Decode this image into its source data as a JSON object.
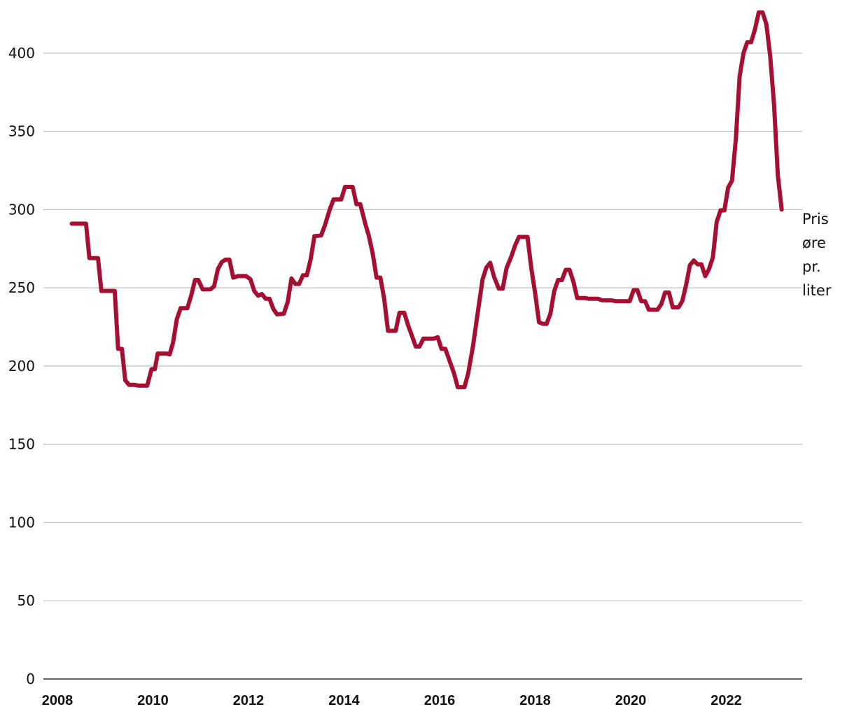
{
  "chart_data": {
    "type": "line",
    "title": "",
    "xlabel": "",
    "ylabel": "",
    "xlim": [
      2008,
      2023.8
    ],
    "ylim": [
      0,
      425
    ],
    "y_ticks": [
      "0",
      "50",
      "100",
      "150",
      "200",
      "250",
      "300",
      "350",
      "400"
    ],
    "x_ticks": [
      "2008",
      "2010",
      "2012",
      "2014",
      "2016",
      "2018",
      "2020",
      "2022"
    ],
    "grid": true,
    "end_label": [
      "Pris",
      "øre",
      "pr.",
      "liter"
    ],
    "series": [
      {
        "color": "#a50f32",
        "points": [
          [
            2008.3,
            291
          ],
          [
            2008.6,
            291
          ],
          [
            2008.67,
            269
          ],
          [
            2008.85,
            269
          ],
          [
            2008.92,
            248
          ],
          [
            2009.2,
            248
          ],
          [
            2009.27,
            211
          ],
          [
            2009.35,
            211
          ],
          [
            2009.42,
            191
          ],
          [
            2009.5,
            188
          ],
          [
            2009.62,
            188
          ],
          [
            2009.7,
            187.5
          ],
          [
            2009.88,
            187.5
          ],
          [
            2009.97,
            198
          ],
          [
            2010.04,
            198
          ],
          [
            2010.1,
            208
          ],
          [
            2010.28,
            208
          ],
          [
            2010.35,
            207.5
          ],
          [
            2010.42,
            215
          ],
          [
            2010.5,
            230
          ],
          [
            2010.58,
            237
          ],
          [
            2010.72,
            237
          ],
          [
            2010.8,
            245
          ],
          [
            2010.88,
            255
          ],
          [
            2010.95,
            255
          ],
          [
            2011.04,
            249
          ],
          [
            2011.2,
            249
          ],
          [
            2011.28,
            251
          ],
          [
            2011.36,
            262
          ],
          [
            2011.44,
            266.5
          ],
          [
            2011.52,
            268
          ],
          [
            2011.6,
            268
          ],
          [
            2011.68,
            256.5
          ],
          [
            2011.78,
            257.5
          ],
          [
            2011.95,
            257.5
          ],
          [
            2012.04,
            255.5
          ],
          [
            2012.12,
            248
          ],
          [
            2012.2,
            245
          ],
          [
            2012.28,
            246
          ],
          [
            2012.36,
            243
          ],
          [
            2012.44,
            243
          ],
          [
            2012.52,
            236.5
          ],
          [
            2012.6,
            233
          ],
          [
            2012.74,
            233.5
          ],
          [
            2012.82,
            241
          ],
          [
            2012.9,
            256
          ],
          [
            2012.98,
            252.5
          ],
          [
            2013.06,
            252.5
          ],
          [
            2013.14,
            258
          ],
          [
            2013.22,
            258
          ],
          [
            2013.3,
            268
          ],
          [
            2013.38,
            283
          ],
          [
            2013.52,
            283.5
          ],
          [
            2013.6,
            290
          ],
          [
            2013.7,
            300
          ],
          [
            2013.78,
            306.5
          ],
          [
            2013.94,
            306.5
          ],
          [
            2014.02,
            314.5
          ],
          [
            2014.18,
            314.5
          ],
          [
            2014.26,
            303.5
          ],
          [
            2014.34,
            303.5
          ],
          [
            2014.44,
            291.5
          ],
          [
            2014.52,
            283
          ],
          [
            2014.6,
            272
          ],
          [
            2014.68,
            256.5
          ],
          [
            2014.76,
            256.5
          ],
          [
            2014.84,
            243
          ],
          [
            2014.92,
            222.5
          ],
          [
            2015.08,
            222.5
          ],
          [
            2015.16,
            234
          ],
          [
            2015.26,
            234
          ],
          [
            2015.34,
            226
          ],
          [
            2015.42,
            219.5
          ],
          [
            2015.5,
            212.5
          ],
          [
            2015.58,
            212.5
          ],
          [
            2015.66,
            217.5
          ],
          [
            2015.88,
            217.5
          ],
          [
            2015.96,
            218.5
          ],
          [
            2016.04,
            211
          ],
          [
            2016.12,
            211
          ],
          [
            2016.2,
            204
          ],
          [
            2016.3,
            195.5
          ],
          [
            2016.38,
            186.5
          ],
          [
            2016.52,
            186.5
          ],
          [
            2016.6,
            195.5
          ],
          [
            2016.7,
            213
          ],
          [
            2016.8,
            234.5
          ],
          [
            2016.9,
            255.5
          ],
          [
            2016.98,
            263
          ],
          [
            2017.06,
            266
          ],
          [
            2017.14,
            257
          ],
          [
            2017.24,
            249.5
          ],
          [
            2017.32,
            249.5
          ],
          [
            2017.4,
            262.5
          ],
          [
            2017.5,
            270
          ],
          [
            2017.58,
            277
          ],
          [
            2017.66,
            282.5
          ],
          [
            2017.84,
            282.5
          ],
          [
            2017.92,
            262.5
          ],
          [
            2018.0,
            246.5
          ],
          [
            2018.08,
            228
          ],
          [
            2018.16,
            227
          ],
          [
            2018.24,
            227
          ],
          [
            2018.32,
            233.5
          ],
          [
            2018.4,
            248
          ],
          [
            2018.48,
            255
          ],
          [
            2018.56,
            255
          ],
          [
            2018.64,
            261.5
          ],
          [
            2018.72,
            261.5
          ],
          [
            2018.8,
            254
          ],
          [
            2018.88,
            243.5
          ],
          [
            2019.04,
            243.5
          ],
          [
            2019.12,
            243
          ],
          [
            2019.32,
            243
          ],
          [
            2019.4,
            242
          ],
          [
            2019.6,
            242
          ],
          [
            2019.68,
            241.5
          ],
          [
            2019.98,
            241.5
          ],
          [
            2020.06,
            248.5
          ],
          [
            2020.14,
            248.5
          ],
          [
            2020.22,
            241.5
          ],
          [
            2020.3,
            241.5
          ],
          [
            2020.38,
            236
          ],
          [
            2020.56,
            236
          ],
          [
            2020.64,
            239.5
          ],
          [
            2020.72,
            247
          ],
          [
            2020.8,
            247
          ],
          [
            2020.88,
            237.5
          ],
          [
            2021.0,
            237.5
          ],
          [
            2021.08,
            241.5
          ],
          [
            2021.16,
            252
          ],
          [
            2021.24,
            264.5
          ],
          [
            2021.32,
            267.5
          ],
          [
            2021.4,
            265
          ],
          [
            2021.48,
            265
          ],
          [
            2021.56,
            257.5
          ],
          [
            2021.64,
            262
          ],
          [
            2021.72,
            269.5
          ],
          [
            2021.8,
            292
          ],
          [
            2021.88,
            299.5
          ],
          [
            2021.96,
            299.5
          ],
          [
            2022.04,
            314
          ],
          [
            2022.12,
            318.5
          ],
          [
            2022.2,
            345
          ],
          [
            2022.28,
            385
          ],
          [
            2022.36,
            400
          ],
          [
            2022.44,
            407
          ],
          [
            2022.52,
            407
          ],
          [
            2022.6,
            415
          ],
          [
            2022.68,
            426
          ],
          [
            2022.76,
            426
          ],
          [
            2022.84,
            418.5
          ],
          [
            2022.92,
            398
          ],
          [
            2023.0,
            367
          ],
          [
            2023.08,
            322
          ],
          [
            2023.16,
            300
          ]
        ]
      }
    ]
  }
}
